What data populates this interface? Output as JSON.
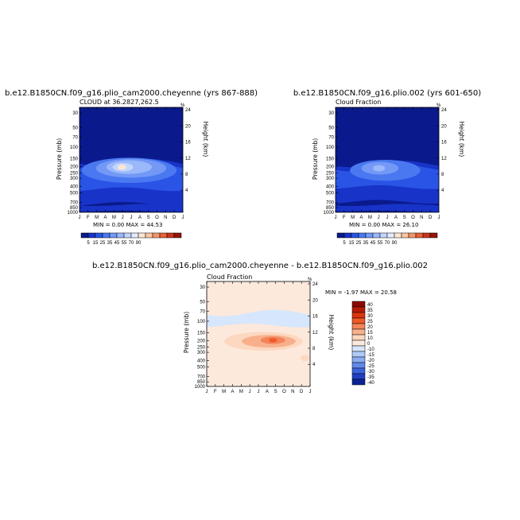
{
  "chart_data": [
    {
      "type": "heatmap",
      "panel_title": "b.e12.B1850CN.f09_g16.plio_cam2000.cheyenne (yrs 867-888)",
      "subtitle": "CLOUD at 36.2827,262.5",
      "ylabel": "Pressure (mb)",
      "ylabel_right": "Height (km)",
      "x_ticks": [
        "J",
        "F",
        "M",
        "A",
        "M",
        "J",
        "J",
        "A",
        "S",
        "O",
        "N",
        "D",
        "J"
      ],
      "y_ticks": [
        "30",
        "50",
        "70",
        "100",
        "150",
        "200",
        "250",
        "300",
        "400",
        "500",
        "700",
        "850",
        "1000"
      ],
      "y_ticks_right": [
        "24",
        "20",
        "16",
        "12",
        "8",
        "4"
      ],
      "stats": "MIN =    0.00 MAX =   44.53",
      "min": 0.0,
      "max": 44.53,
      "colorbar_labels": [
        "5",
        "15",
        "25",
        "35",
        "45",
        "55",
        "70",
        "90"
      ],
      "features": [
        {
          "level_mb": 200,
          "month": "M-J",
          "value": 44.5
        }
      ]
    },
    {
      "type": "heatmap",
      "panel_title": "b.e12.B1850CN.f09_g16.plio.002 (yrs 601-650)",
      "subtitle": "Cloud Fraction",
      "ylabel": "Pressure (mb)",
      "ylabel_right": "Height (km)",
      "x_ticks": [
        "J",
        "F",
        "M",
        "A",
        "M",
        "J",
        "J",
        "A",
        "S",
        "O",
        "N",
        "D",
        "J"
      ],
      "y_ticks": [
        "30",
        "50",
        "70",
        "100",
        "150",
        "200",
        "250",
        "300",
        "400",
        "500",
        "700",
        "850",
        "1000"
      ],
      "y_ticks_right": [
        "24",
        "20",
        "16",
        "12",
        "8",
        "4"
      ],
      "stats": "MIN =    0.00 MAX =   26.10",
      "min": 0.0,
      "max": 26.1,
      "colorbar_labels": [
        "5",
        "15",
        "25",
        "35",
        "45",
        "55",
        "70",
        "90"
      ]
    },
    {
      "type": "heatmap",
      "panel_title": "b.e12.B1850CN.f09_g16.plio_cam2000.cheyenne - b.e12.B1850CN.f09_g16.plio.002",
      "subtitle": "Cloud Fraction",
      "ylabel": "Pressure (mb)",
      "ylabel_right": "Height (km)",
      "x_ticks": [
        "J",
        "F",
        "M",
        "A",
        "M",
        "J",
        "J",
        "A",
        "S",
        "O",
        "N",
        "D",
        "J"
      ],
      "y_ticks": [
        "30",
        "50",
        "70",
        "100",
        "150",
        "200",
        "250",
        "300",
        "400",
        "500",
        "700",
        "850",
        "1000"
      ],
      "y_ticks_right": [
        "24",
        "20",
        "16",
        "12",
        "8",
        "4"
      ],
      "stats": "MIN =   -1.97 MAX =   20.58",
      "min": -1.97,
      "max": 20.58,
      "colorbar_labels": [
        "40",
        "35",
        "30",
        "25",
        "20",
        "15",
        "10",
        "0",
        "-10",
        "-15",
        "-20",
        "-25",
        "-30",
        "-35",
        "-40"
      ]
    }
  ],
  "colors": {
    "seq": [
      "#0a1a8c",
      "#1833c8",
      "#2a54e6",
      "#4a78f0",
      "#7398f6",
      "#9ab8fa",
      "#c2d6fc",
      "#e4ecfe",
      "#fde6d2",
      "#fbc4a0",
      "#f49468",
      "#e6603a",
      "#cc3418",
      "#9a1408"
    ],
    "diff": [
      "#8c0a04",
      "#b81a08",
      "#dc3410",
      "#ee5a28",
      "#f4845a",
      "#f8b08c",
      "#fcd8c0",
      "#fde9dc",
      "#d6e6fc",
      "#b0caf8",
      "#8aacf2",
      "#6288ea",
      "#3c62dc",
      "#2040c4",
      "#0c2494"
    ]
  }
}
